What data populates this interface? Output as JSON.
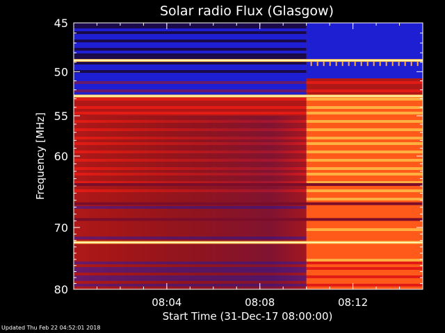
{
  "chart_data": {
    "type": "heatmap",
    "title": "Solar radio Flux (Glasgow)",
    "ylabel": "Frequency [MHz]",
    "xlabel": "Start Time (31-Dec-17 08:00:00)",
    "x_tick_labels": [
      "08:04",
      "08:08",
      "08:12"
    ],
    "x_ticks_minutes": [
      4,
      8,
      12
    ],
    "xlim_minutes": [
      0,
      15
    ],
    "y_scale": "log",
    "ylim": [
      45,
      80
    ],
    "y_tick_labels": [
      "45",
      "50",
      "55",
      "60",
      "70",
      "80"
    ],
    "y_ticks": [
      45,
      50,
      55,
      60,
      70,
      80
    ],
    "y_minor_ticks": [
      46,
      47,
      48,
      49,
      51,
      52,
      53,
      54,
      56,
      57,
      58,
      59,
      61,
      62,
      63,
      64,
      65,
      66,
      67,
      68,
      69,
      71,
      72,
      73,
      74,
      75,
      76,
      77,
      78,
      79
    ],
    "intensity_change_minute": 10,
    "bright_lines_mhz": [
      48.8,
      52.7,
      72.3
    ],
    "dark_lines_mhz": [
      63.8,
      66.5,
      68.8
    ],
    "colormap": [
      "#000000",
      "#1a0a4a",
      "#1e1ed2",
      "#6a1a6a",
      "#b01818",
      "#e21c14",
      "#ff5a1a",
      "#ffb040",
      "#ffff60"
    ]
  },
  "footer": {
    "updated": "Updated Thu Feb 22 04:52:01 2018"
  }
}
